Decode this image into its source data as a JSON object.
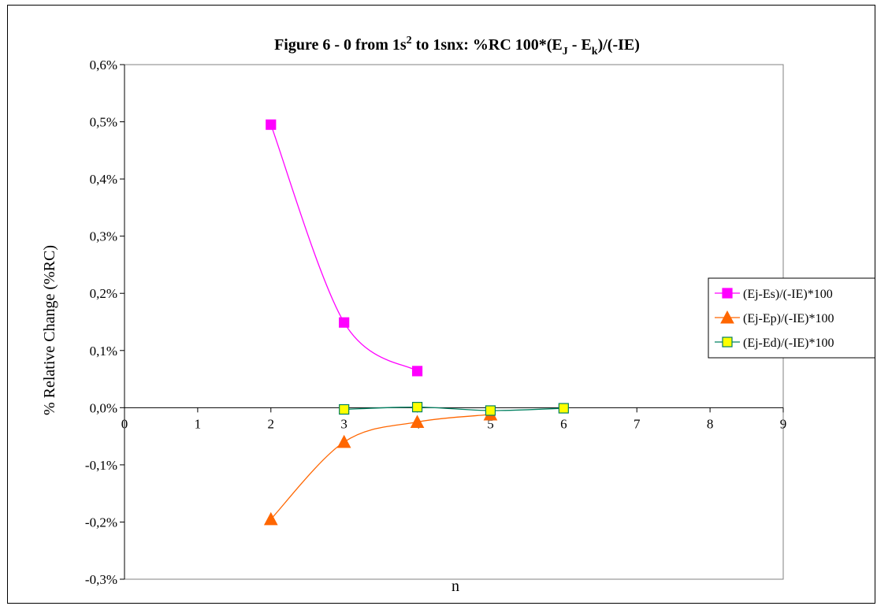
{
  "chart_data": {
    "type": "line",
    "title": {
      "main": "Figure 6 - 0 from 1s",
      "sup": "2",
      "mid": " to 1snx: %RC   100*(E",
      "sub1": "J",
      "mid2": " - E",
      "sub2": "k",
      "end": ")/(-IE)"
    },
    "xlabel": "n",
    "ylabel": "% Relative Change (%RC)",
    "xlim": [
      0,
      9
    ],
    "ylim": [
      -0.3,
      0.6
    ],
    "x_ticks": [
      "0",
      "1",
      "2",
      "3",
      "4",
      "5",
      "6",
      "7",
      "8",
      "9"
    ],
    "y_ticks": [
      {
        "value": 0.6,
        "label": "0,6%"
      },
      {
        "value": 0.5,
        "label": "0,5%"
      },
      {
        "value": 0.4,
        "label": "0,4%"
      },
      {
        "value": 0.3,
        "label": "0,3%"
      },
      {
        "value": 0.2,
        "label": "0,2%"
      },
      {
        "value": 0.1,
        "label": "0,1%"
      },
      {
        "value": 0.0,
        "label": "0,0%"
      },
      {
        "value": -0.1,
        "label": "-0,1%"
      },
      {
        "value": -0.2,
        "label": "-0,2%"
      },
      {
        "value": -0.3,
        "label": "-0,3%"
      }
    ],
    "grid": false,
    "legend_position": "right",
    "series": [
      {
        "name": "(Ej-Es)/(-IE)*100",
        "color": "#ff00ff",
        "marker": "square",
        "marker_fill": "#ff00ff",
        "marker_stroke": "#ff00ff",
        "x": [
          2,
          3,
          4
        ],
        "y": [
          0.495,
          0.149,
          0.064
        ]
      },
      {
        "name": "(Ej-Ep)/(-IE)*100",
        "color": "#ff6600",
        "marker": "triangle",
        "marker_fill": "#ff6600",
        "marker_stroke": "#ff6600",
        "x": [
          2,
          3,
          4,
          5
        ],
        "y": [
          -0.195,
          -0.06,
          -0.025,
          -0.012
        ]
      },
      {
        "name": "(Ej-Ed)/(-IE)*100",
        "color": "#008060",
        "marker": "square",
        "marker_fill": "#ffff00",
        "marker_stroke": "#008060",
        "x": [
          3,
          4,
          5,
          6
        ],
        "y": [
          -0.003,
          0.001,
          -0.005,
          -0.001
        ]
      }
    ]
  }
}
